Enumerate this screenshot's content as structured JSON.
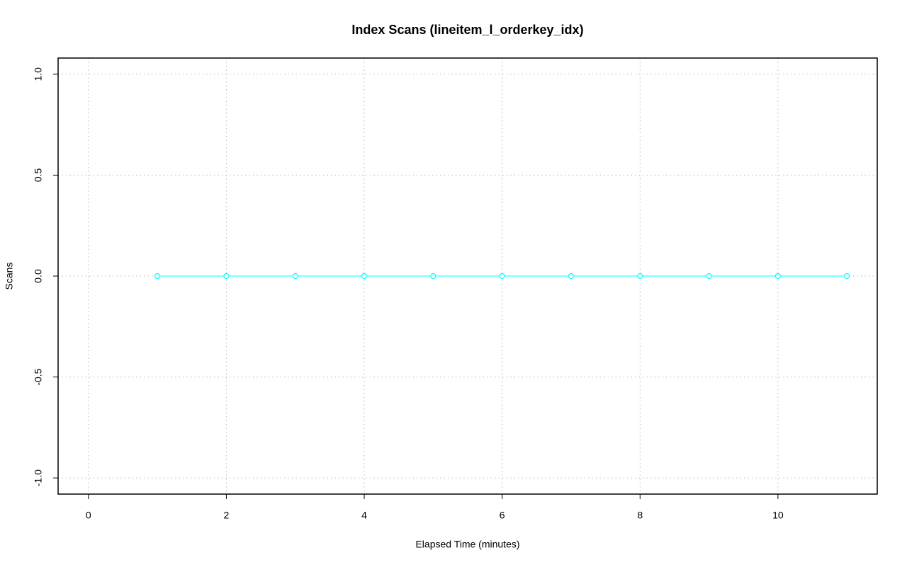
{
  "chart_data": {
    "type": "line",
    "title": "Index Scans (lineitem_l_orderkey_idx)",
    "xlabel": "Elapsed Time (minutes)",
    "ylabel": "Scans",
    "x": [
      1,
      2,
      3,
      4,
      5,
      6,
      7,
      8,
      9,
      10,
      11
    ],
    "series": [
      {
        "name": "lineitem_l_orderkey_idx",
        "color": "#00ffff",
        "values": [
          0,
          0,
          0,
          0,
          0,
          0,
          0,
          0,
          0,
          0,
          0
        ]
      }
    ],
    "xlim": [
      -0.44,
      11.44
    ],
    "ylim": [
      -1.08,
      1.08
    ],
    "xticks": [
      0,
      2,
      4,
      6,
      8,
      10
    ],
    "yticks": [
      {
        "value": -1,
        "label": "-1.0"
      },
      {
        "value": -0.5,
        "label": "-0.5"
      },
      {
        "value": 0,
        "label": "0.0"
      },
      {
        "value": 0.5,
        "label": "0.5"
      },
      {
        "value": 1,
        "label": "1.0"
      }
    ],
    "grid": true
  }
}
